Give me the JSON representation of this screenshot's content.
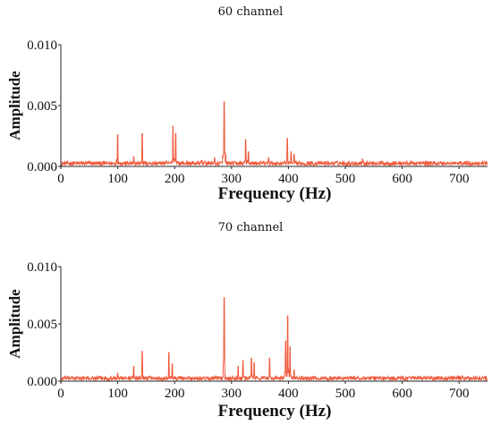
{
  "chart_data": [
    {
      "type": "line",
      "title": "60 channel",
      "xlabel": "Frequency (Hz)",
      "ylabel": "Amplitude",
      "xlim": [
        0,
        750
      ],
      "ylim": [
        0,
        0.01
      ],
      "xticks": [
        "0",
        "100",
        "200",
        "300",
        "400",
        "500",
        "600",
        "700"
      ],
      "yticks": [
        "0.000",
        "0.005",
        "0.010"
      ],
      "grid": false,
      "color": "#f05a3c",
      "series": [
        {
          "baseline": 0.0003,
          "peaks": [
            {
              "x": 100,
              "y": 0.0026
            },
            {
              "x": 128,
              "y": 0.0008
            },
            {
              "x": 143,
              "y": 0.0027
            },
            {
              "x": 197,
              "y": 0.0033
            },
            {
              "x": 202,
              "y": 0.0027
            },
            {
              "x": 248,
              "y": 0.0005
            },
            {
              "x": 270,
              "y": 0.0007
            },
            {
              "x": 287,
              "y": 0.0053
            },
            {
              "x": 325,
              "y": 0.0022
            },
            {
              "x": 330,
              "y": 0.0012
            },
            {
              "x": 365,
              "y": 0.0007
            },
            {
              "x": 398,
              "y": 0.0023
            },
            {
              "x": 405,
              "y": 0.0012
            },
            {
              "x": 410,
              "y": 0.001
            },
            {
              "x": 530,
              "y": 0.0006
            }
          ]
        }
      ]
    },
    {
      "type": "line",
      "title": "70 channel",
      "xlabel": "Frequency (Hz)",
      "ylabel": "Amplitude",
      "xlim": [
        0,
        750
      ],
      "ylim": [
        0,
        0.01
      ],
      "xticks": [
        "0",
        "100",
        "200",
        "300",
        "400",
        "500",
        "600",
        "700"
      ],
      "yticks": [
        "0.000",
        "0.005",
        "0.010"
      ],
      "grid": false,
      "color": "#f05a3c",
      "series": [
        {
          "baseline": 0.0003,
          "peaks": [
            {
              "x": 100,
              "y": 0.0007
            },
            {
              "x": 128,
              "y": 0.0013
            },
            {
              "x": 143,
              "y": 0.0026
            },
            {
              "x": 190,
              "y": 0.0025
            },
            {
              "x": 196,
              "y": 0.0015
            },
            {
              "x": 287,
              "y": 0.0073
            },
            {
              "x": 312,
              "y": 0.0013
            },
            {
              "x": 320,
              "y": 0.0018
            },
            {
              "x": 335,
              "y": 0.002
            },
            {
              "x": 340,
              "y": 0.0016
            },
            {
              "x": 367,
              "y": 0.002
            },
            {
              "x": 395,
              "y": 0.0035
            },
            {
              "x": 399,
              "y": 0.0057
            },
            {
              "x": 403,
              "y": 0.003
            },
            {
              "x": 410,
              "y": 0.001
            }
          ]
        }
      ]
    }
  ]
}
